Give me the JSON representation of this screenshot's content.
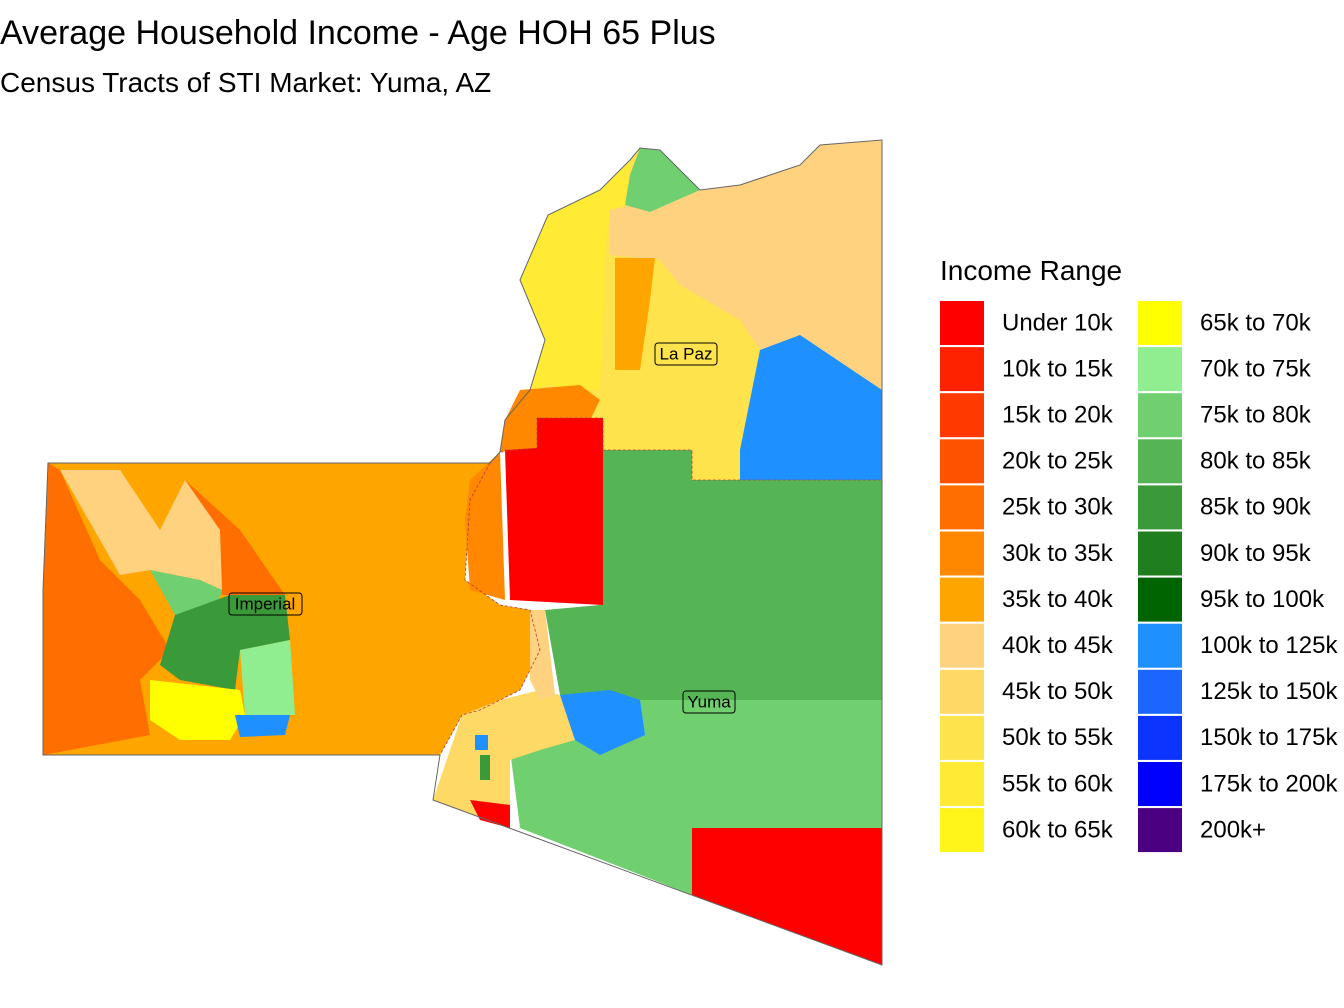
{
  "title": "Average Household Income - Age HOH 65 Plus",
  "subtitle": "Census Tracts of STI Market: Yuma, AZ",
  "legend": {
    "title": "Income Range",
    "items": [
      {
        "label": "Under 10k",
        "color": "#ff0000"
      },
      {
        "label": "10k to 15k",
        "color": "#ff2200"
      },
      {
        "label": "15k to 20k",
        "color": "#ff3a00"
      },
      {
        "label": "20k to 25k",
        "color": "#ff5200"
      },
      {
        "label": "25k to 30k",
        "color": "#ff6e00"
      },
      {
        "label": "30k to 35k",
        "color": "#ff8800"
      },
      {
        "label": "35k to 40k",
        "color": "#ffa500"
      },
      {
        "label": "40k to 45k",
        "color": "#ffd280"
      },
      {
        "label": "45k to 50k",
        "color": "#ffd966"
      },
      {
        "label": "50k to 55k",
        "color": "#ffe34d"
      },
      {
        "label": "55k to 60k",
        "color": "#ffeb33"
      },
      {
        "label": "60k to 65k",
        "color": "#fff51a"
      },
      {
        "label": "65k to 70k",
        "color": "#ffff00"
      },
      {
        "label": "70k to 75k",
        "color": "#90ee90"
      },
      {
        "label": "75k to 80k",
        "color": "#70d070"
      },
      {
        "label": "80k to 85k",
        "color": "#55b555"
      },
      {
        "label": "85k to 90k",
        "color": "#3a9a3a"
      },
      {
        "label": "90k to 95k",
        "color": "#1f7f1f"
      },
      {
        "label": "95k to 100k",
        "color": "#006400"
      },
      {
        "label": "100k to 125k",
        "color": "#1e90ff"
      },
      {
        "label": "125k to 150k",
        "color": "#1a66ff"
      },
      {
        "label": "150k to 175k",
        "color": "#0d33ff"
      },
      {
        "label": "175k to 200k",
        "color": "#0000ff"
      },
      {
        "label": "200k+",
        "color": "#4b0082"
      }
    ]
  },
  "map": {
    "labels": [
      "La Paz",
      "Imperial",
      "Yuma"
    ]
  }
}
